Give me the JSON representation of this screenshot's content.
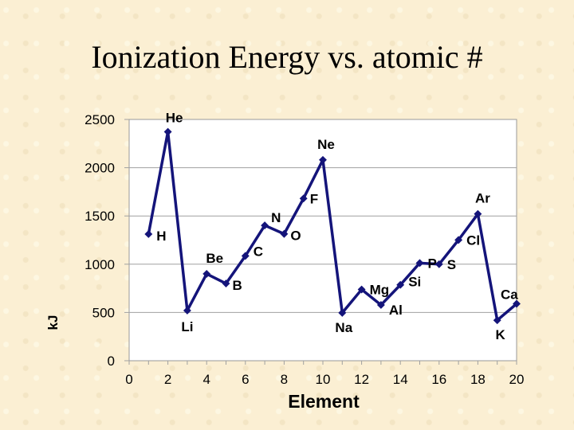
{
  "title": "Ionization Energy vs. atomic #",
  "chart_data": {
    "type": "line",
    "title": "Ionization Energy vs. atomic #",
    "xlabel": "Element",
    "ylabel": "kJ",
    "xlim": [
      0,
      20
    ],
    "ylim": [
      0,
      2500
    ],
    "xticks": [
      0,
      2,
      4,
      6,
      8,
      10,
      12,
      14,
      16,
      18,
      20
    ],
    "yticks": [
      0,
      500,
      1000,
      1500,
      2000,
      2500
    ],
    "grid": "horizontal",
    "series": [
      {
        "name": "Ionization Energy",
        "color": "#14147a",
        "points": [
          {
            "x": 1,
            "y": 1312,
            "label": "H"
          },
          {
            "x": 2,
            "y": 2372,
            "label": "He"
          },
          {
            "x": 3,
            "y": 520,
            "label": "Li"
          },
          {
            "x": 4,
            "y": 900,
            "label": "Be"
          },
          {
            "x": 5,
            "y": 800,
            "label": "B"
          },
          {
            "x": 6,
            "y": 1086,
            "label": "C"
          },
          {
            "x": 7,
            "y": 1402,
            "label": "N"
          },
          {
            "x": 8,
            "y": 1314,
            "label": "O"
          },
          {
            "x": 9,
            "y": 1681,
            "label": "F"
          },
          {
            "x": 10,
            "y": 2081,
            "label": "Ne"
          },
          {
            "x": 11,
            "y": 496,
            "label": "Na"
          },
          {
            "x": 12,
            "y": 738,
            "label": "Mg"
          },
          {
            "x": 13,
            "y": 578,
            "label": "Al"
          },
          {
            "x": 14,
            "y": 786,
            "label": "Si"
          },
          {
            "x": 15,
            "y": 1012,
            "label": "P"
          },
          {
            "x": 16,
            "y": 1000,
            "label": "S"
          },
          {
            "x": 17,
            "y": 1251,
            "label": "Cl"
          },
          {
            "x": 18,
            "y": 1521,
            "label": "Ar"
          },
          {
            "x": 19,
            "y": 419,
            "label": "K"
          },
          {
            "x": 20,
            "y": 590,
            "label": "Ca"
          }
        ]
      }
    ]
  }
}
